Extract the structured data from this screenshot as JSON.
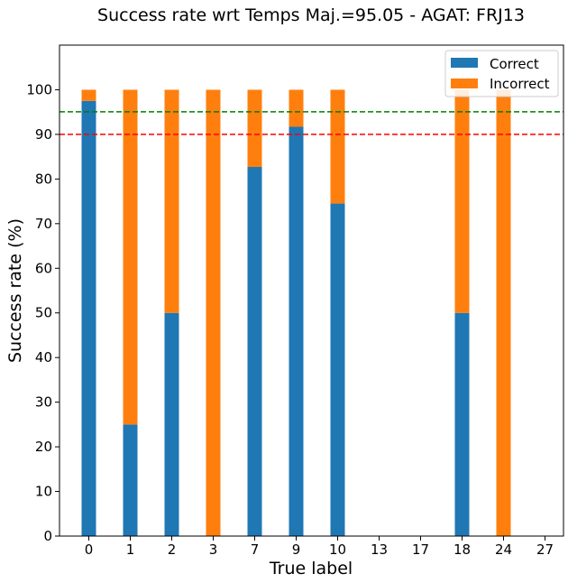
{
  "chart_data": {
    "type": "bar",
    "stacked": true,
    "title": "Success rate wrt Temps Maj.=95.05 - AGAT:  FRJ13",
    "xlabel": "True label",
    "ylabel": "Success rate (%)",
    "categories": [
      "0",
      "1",
      "2",
      "3",
      "7",
      "9",
      "10",
      "13",
      "17",
      "18",
      "24",
      "27"
    ],
    "series": [
      {
        "name": "Correct",
        "color": "#1f77b4",
        "values": [
          97.5,
          25,
          50,
          0,
          82.7,
          91.7,
          74.5,
          0,
          0,
          50,
          0,
          0
        ]
      },
      {
        "name": "Incorrect",
        "color": "#ff7f0e",
        "values": [
          2.5,
          75,
          50,
          100,
          17.3,
          8.3,
          25.5,
          0,
          0,
          50,
          100,
          0
        ]
      }
    ],
    "yticks": [
      0,
      10,
      20,
      30,
      40,
      50,
      60,
      70,
      80,
      90,
      100
    ],
    "ylim": [
      0,
      110
    ],
    "reference_lines": [
      {
        "value": 95.05,
        "color": "#008000",
        "style": "dashed"
      },
      {
        "value": 90,
        "color": "#ff0000",
        "style": "dashed"
      }
    ],
    "legend_position": "top-right",
    "grid": false
  }
}
